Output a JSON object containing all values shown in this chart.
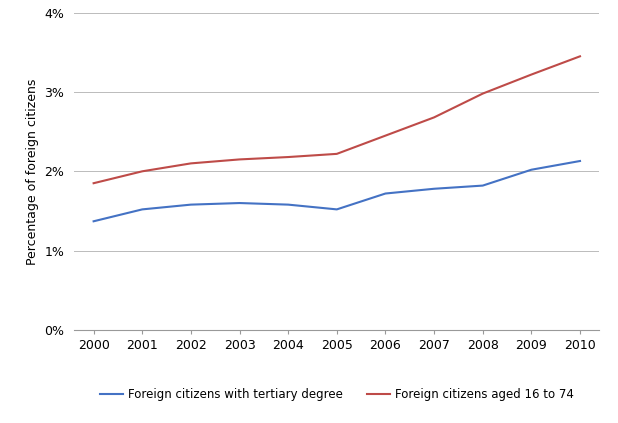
{
  "years": [
    2000,
    2001,
    2002,
    2003,
    2004,
    2005,
    2006,
    2007,
    2008,
    2009,
    2010
  ],
  "blue_values": [
    0.0137,
    0.0152,
    0.0158,
    0.016,
    0.0158,
    0.0152,
    0.0172,
    0.0178,
    0.0182,
    0.0202,
    0.0213
  ],
  "red_values": [
    0.0185,
    0.02,
    0.021,
    0.0215,
    0.0218,
    0.0222,
    0.0245,
    0.0268,
    0.0298,
    0.0322,
    0.0345
  ],
  "blue_color": "#4472C4",
  "red_color": "#BE4B48",
  "blue_label": "Foreign citizens with tertiary degree",
  "red_label": "Foreign citizens aged 16 to 74",
  "ylabel": "Percentage of foreign citizens",
  "ylim": [
    0.0,
    0.04
  ],
  "yticks": [
    0.0,
    0.01,
    0.02,
    0.03,
    0.04
  ],
  "grid_color": "#BBBBBB",
  "background_color": "#FFFFFF"
}
